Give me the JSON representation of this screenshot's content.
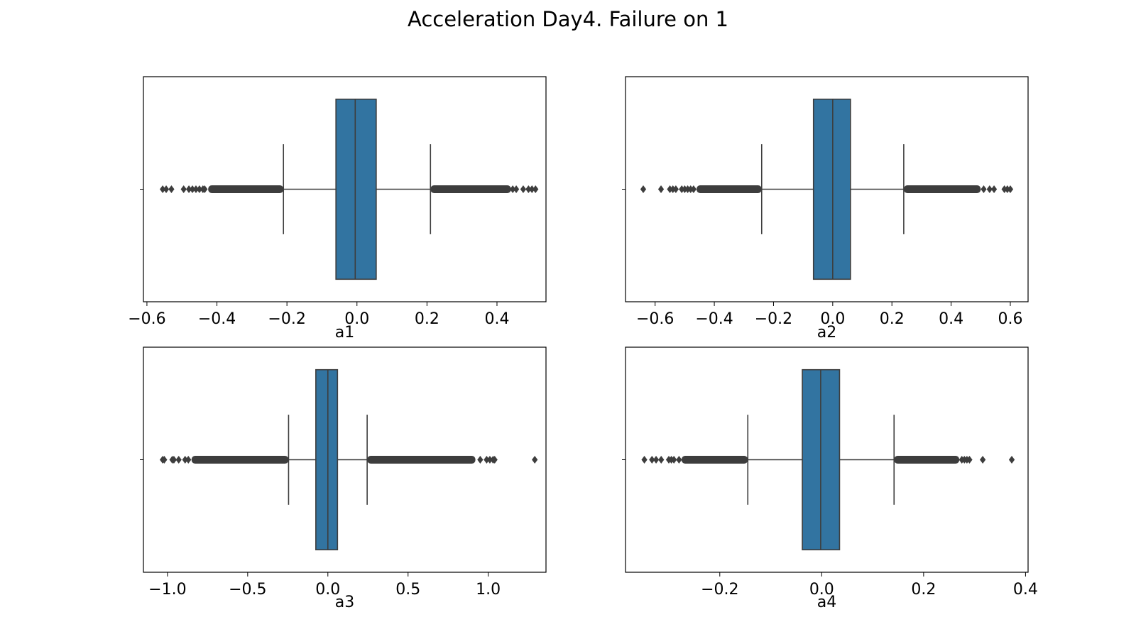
{
  "figure_title": "Acceleration Day4. Failure on 1",
  "colors": {
    "box_fill": "#3274a1",
    "line": "#3d3d3d",
    "frame": "#000000"
  },
  "chart_data": [
    {
      "type": "box",
      "orientation": "horizontal",
      "xlabel": "a1",
      "xlim": [
        -0.61,
        0.54
      ],
      "xticks": [
        -0.6,
        -0.4,
        -0.2,
        0.0,
        0.2,
        0.4
      ],
      "tick_labels": [
        "−0.6",
        "−0.4",
        "−0.2",
        "0.0",
        "0.2",
        "0.4"
      ],
      "box": {
        "whisker_low": -0.21,
        "q1": -0.06,
        "median": -0.005,
        "q3": 0.055,
        "whisker_high": 0.21
      },
      "outliers": {
        "low_range": [
          -0.425,
          -0.21
        ],
        "low_points": [
          -0.555,
          -0.545,
          -0.53,
          -0.495,
          -0.48,
          -0.47,
          -0.46,
          -0.45,
          -0.44,
          -0.435
        ],
        "high_range": [
          0.21,
          0.44
        ],
        "high_points": [
          0.445,
          0.455,
          0.475,
          0.49,
          0.5,
          0.51
        ]
      }
    },
    {
      "type": "box",
      "orientation": "horizontal",
      "xlabel": "a2",
      "xlim": [
        -0.7,
        0.66
      ],
      "xticks": [
        -0.6,
        -0.4,
        -0.2,
        0.0,
        0.2,
        0.4,
        0.6
      ],
      "tick_labels": [
        "−0.6",
        "−0.4",
        "−0.2",
        "0.0",
        "0.2",
        "0.4",
        "0.6"
      ],
      "box": {
        "whisker_low": -0.24,
        "q1": -0.065,
        "median": 0.0,
        "q3": 0.06,
        "whisker_high": 0.24
      },
      "outliers": {
        "low_range": [
          -0.46,
          -0.24
        ],
        "low_points": [
          -0.64,
          -0.58,
          -0.55,
          -0.54,
          -0.53,
          -0.51,
          -0.5,
          -0.49,
          -0.48,
          -0.47
        ],
        "high_range": [
          0.24,
          0.5
        ],
        "high_points": [
          0.51,
          0.53,
          0.545,
          0.58,
          0.59,
          0.6
        ]
      }
    },
    {
      "type": "box",
      "orientation": "horizontal",
      "xlabel": "a3",
      "xlim": [
        -1.15,
        1.36
      ],
      "xticks": [
        -1.0,
        -0.5,
        0.0,
        0.5,
        1.0
      ],
      "tick_labels": [
        "−1.0",
        "−0.5",
        "0.0",
        "0.5",
        "1.0"
      ],
      "box": {
        "whisker_low": -0.245,
        "q1": -0.075,
        "median": 0.0,
        "q3": 0.06,
        "whisker_high": 0.245
      },
      "outliers": {
        "low_range": [
          -0.85,
          -0.245
        ],
        "low_points": [
          -1.03,
          -1.02,
          -0.97,
          -0.96,
          -0.93,
          -0.89,
          -0.87
        ],
        "high_range": [
          0.245,
          0.92
        ],
        "high_points": [
          0.95,
          0.99,
          1.01,
          1.03,
          1.04,
          1.29
        ]
      }
    },
    {
      "type": "box",
      "orientation": "horizontal",
      "xlabel": "a4",
      "xlim": [
        -0.385,
        0.405
      ],
      "xticks": [
        -0.2,
        0.0,
        0.2,
        0.4
      ],
      "tick_labels": [
        "−0.2",
        "0.0",
        "0.2",
        "0.4"
      ],
      "box": {
        "whisker_low": -0.145,
        "q1": -0.038,
        "median": -0.002,
        "q3": 0.035,
        "whisker_high": 0.142
      },
      "outliers": {
        "low_range": [
          -0.275,
          -0.145
        ],
        "low_points": [
          -0.348,
          -0.333,
          -0.325,
          -0.315,
          -0.3,
          -0.295,
          -0.29,
          -0.28
        ],
        "high_range": [
          0.142,
          0.27
        ],
        "high_points": [
          0.275,
          0.28,
          0.285,
          0.29,
          0.316,
          0.373
        ]
      }
    }
  ]
}
